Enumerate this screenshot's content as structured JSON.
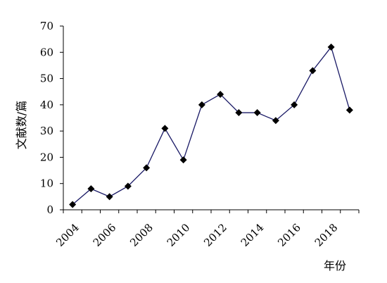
{
  "chart_data": {
    "type": "line",
    "title": "",
    "xlabel": "年份",
    "ylabel": "文献数/篇",
    "x": [
      2004,
      2005,
      2006,
      2007,
      2008,
      2009,
      2010,
      2011,
      2012,
      2013,
      2014,
      2015,
      2016,
      2017,
      2018,
      2019
    ],
    "x_tick_labels": [
      "2004",
      "2006",
      "2008",
      "2010",
      "2012",
      "2014",
      "2016",
      "2018"
    ],
    "y_ticks": [
      0,
      10,
      20,
      30,
      40,
      50,
      60,
      70
    ],
    "ylim": [
      0,
      70
    ],
    "xlim": [
      2003.5,
      2019.5
    ],
    "grid": false,
    "series": [
      {
        "values": [
          2,
          8,
          5,
          9,
          16,
          31,
          19,
          40,
          44,
          37,
          37,
          34,
          40,
          53,
          62,
          38
        ],
        "color": "#1a1a66",
        "marker": "diamond",
        "marker_color": "#000000"
      }
    ]
  }
}
